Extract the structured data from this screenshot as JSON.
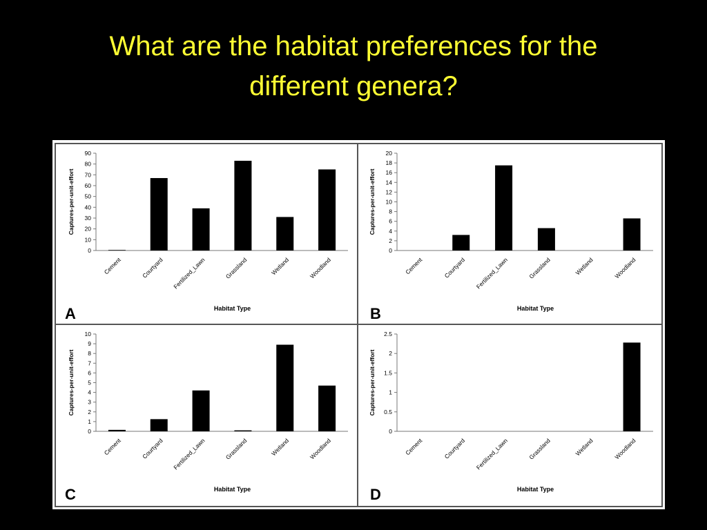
{
  "slide": {
    "title_line1": "What are the habitat preferences for the",
    "title_line2": "different genera?"
  },
  "colors": {
    "background": "#000000",
    "title": "#ffff33",
    "bars": "#000000"
  },
  "chart_data": [
    {
      "type": "bar",
      "panel_label": "A",
      "title": "",
      "xlabel": "Habitat Type",
      "ylabel": "Captures-per-unit-effort",
      "categories": [
        "Cement",
        "Courtyard",
        "Fertilized_Lawn",
        "Grassland",
        "Wetland",
        "Woodland"
      ],
      "values": [
        0.5,
        67,
        39,
        83,
        31,
        75
      ],
      "ylim": [
        0,
        90
      ],
      "yticks": [
        "0",
        "10",
        "20",
        "30",
        "40",
        "50",
        "60",
        "70",
        "80",
        "90"
      ],
      "grid": false,
      "legend": "none"
    },
    {
      "type": "bar",
      "panel_label": "B",
      "title": "",
      "xlabel": "Habitat Type",
      "ylabel": "Captures-per-unit-effort",
      "categories": [
        "Cement",
        "Courtyard",
        "Fertilized_Lawn",
        "Grassland",
        "Wetland",
        "Woodland"
      ],
      "values": [
        0,
        3.2,
        17.5,
        4.6,
        0,
        6.6
      ],
      "ylim": [
        0,
        20
      ],
      "yticks": [
        "0",
        "2",
        "4",
        "6",
        "8",
        "10",
        "12",
        "14",
        "16",
        "18",
        "20"
      ],
      "grid": false,
      "legend": "none"
    },
    {
      "type": "bar",
      "panel_label": "C",
      "title": "",
      "xlabel": "Habitat Type",
      "ylabel": "Captures-per-unit-effort",
      "categories": [
        "Cement",
        "Courtyard",
        "Fertilized_Lawn",
        "Grassland",
        "Wetland",
        "Woodland"
      ],
      "values": [
        0.15,
        1.25,
        4.2,
        0.1,
        8.9,
        4.7
      ],
      "ylim": [
        0,
        10
      ],
      "yticks": [
        "0",
        "1",
        "2",
        "3",
        "4",
        "5",
        "6",
        "7",
        "8",
        "9",
        "10"
      ],
      "grid": false,
      "legend": "none"
    },
    {
      "type": "bar",
      "panel_label": "D",
      "title": "",
      "xlabel": "Habitat Type",
      "ylabel": "Captures-per-unit-effort",
      "categories": [
        "Cement",
        "Courtyard",
        "Fertilized_Lawn",
        "Grassland",
        "Wetland",
        "Woodland"
      ],
      "values": [
        0,
        0,
        0,
        0,
        0,
        2.28
      ],
      "ylim": [
        0,
        2.5
      ],
      "yticks": [
        "0",
        "0.5",
        "1",
        "1.5",
        "2",
        "2.5"
      ],
      "grid": false,
      "legend": "none"
    }
  ]
}
